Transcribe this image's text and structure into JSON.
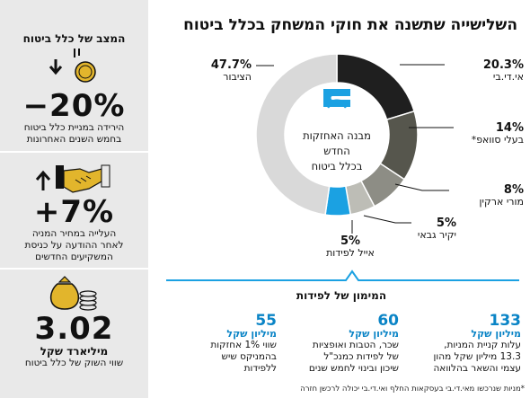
{
  "title": "השלישייה שתשנה את חוקי המשחק בכלל ביטוח",
  "chart_data": {
    "type": "pie",
    "style": "donut",
    "center_text": [
      "מבנה האחזקות",
      "החדש",
      "בכלל ביטוח"
    ],
    "slices": [
      {
        "name": "אי.די.בי",
        "value": 20.3,
        "label": "20.3%",
        "color": "#1f1f1f"
      },
      {
        "name": "בעלי סוואפ*",
        "value": 14,
        "label": "14%",
        "color": "#56564d"
      },
      {
        "name": "מורי ארקין",
        "value": 8,
        "label": "8%",
        "color": "#8d8d85"
      },
      {
        "name": "יקיר גבאי",
        "value": 5,
        "label": "5%",
        "color": "#bdbdb6"
      },
      {
        "name": "אייל לפידות",
        "value": 5,
        "label": "5%",
        "color": "#1ba1e2"
      },
      {
        "name": "הציבור",
        "value": 47.7,
        "label": "47.7%",
        "color": "#d9d9d9"
      }
    ]
  },
  "side": {
    "heading": "המצב של כלל ביטוח",
    "block1": {
      "big": "−20%",
      "text1": "הירידה במניית כלל ביטוח",
      "text2": "בחמש השנים האחרונות"
    },
    "block2": {
      "big": "+7%",
      "text1": "העלייה במחיר המניה",
      "text2": "לאחר ההודעה על כניסת",
      "text3": "המשקיעים החדשים"
    },
    "block3": {
      "big": "3.02",
      "unit": "מיליארד שקל",
      "text1": "שווי השוק של כלל ביטוח"
    }
  },
  "funding": {
    "heading": "המימון של לפידות",
    "items": [
      {
        "num": "133",
        "unit": "מיליון שקל",
        "lines": [
          "עלות קניית המניות,",
          "13.3 מיליון שקל מהון",
          "עצמי והשאר בהלוואה"
        ]
      },
      {
        "num": "60",
        "unit": "מיליון שקל",
        "lines": [
          "שכר, הטבות ואופציות",
          "של לפידות כמנכ\"ל",
          "שיכון ובינוי לחמש שנים"
        ]
      },
      {
        "num": "55",
        "unit": "מיליון שקל",
        "lines": [
          "שווי 1% אחזקות",
          "בהמניקס שיש",
          "ללפידות"
        ]
      }
    ]
  },
  "footnote": "*מניות שנרכשו מאי.די.בי בעסקאות החלף ואי.די.בי יכולה לרכשן חזרה"
}
